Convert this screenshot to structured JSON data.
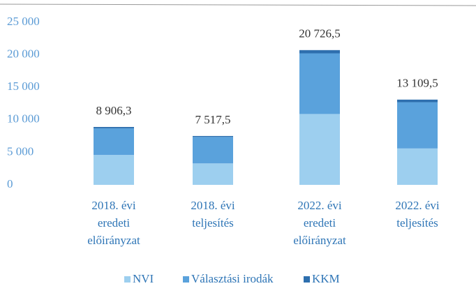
{
  "chart_data": {
    "type": "stacked-bar",
    "categories": [
      [
        "2018. évi",
        "eredeti",
        "előirányzat"
      ],
      [
        "2018. évi",
        "teljesítés"
      ],
      [
        "2022. évi",
        "eredeti",
        "előirányzat"
      ],
      [
        "2022. évi",
        "teljesítés"
      ]
    ],
    "series": [
      {
        "name": "NVI",
        "color": "#9dcfef",
        "values": [
          4600,
          3300,
          10900,
          5600
        ]
      },
      {
        "name": "Választási irodák",
        "color": "#5aa2dc",
        "values": [
          4100,
          4067.5,
          9326.5,
          7109.5
        ]
      },
      {
        "name": "KKM",
        "color": "#2e6fae",
        "values": [
          206.3,
          150,
          500,
          400
        ]
      }
    ],
    "totals": [
      8906.3,
      7517.5,
      20726.5,
      13109.5
    ],
    "total_labels": [
      "8 906,3",
      "7 517,5",
      "20 726,5",
      "13 109,5"
    ],
    "ylim": [
      0,
      25000
    ],
    "yticks": [
      0,
      {
        "value": 5000,
        "label": "5 000"
      },
      {
        "value": 10000,
        "label": "10 000"
      },
      {
        "value": 15000,
        "label": "15 000"
      },
      {
        "value": 20000,
        "label": "20 000"
      },
      {
        "value": 25000,
        "label": "25 000"
      }
    ],
    "legend": "bottom"
  }
}
